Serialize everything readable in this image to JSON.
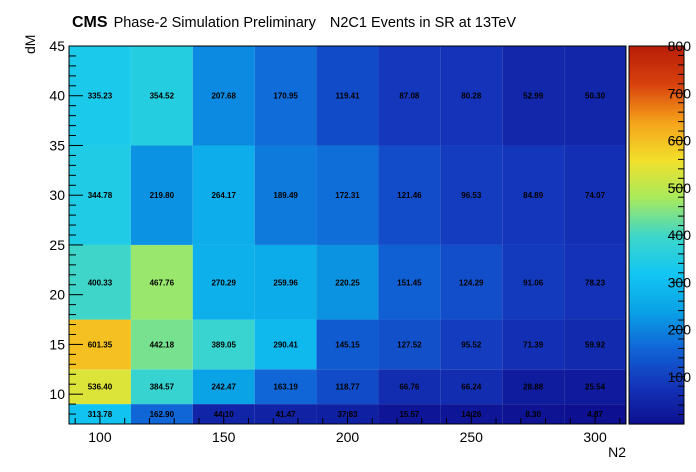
{
  "header": {
    "experiment": "CMS",
    "subtitle": "Phase-2 Simulation Preliminary",
    "description": "N2C1 Events in SR at 13TeV"
  },
  "chart_data": {
    "type": "heatmap",
    "xlabel": "N2",
    "ylabel": "dM",
    "xlim": [
      87.5,
      312.5
    ],
    "ylim": [
      7,
      45
    ],
    "zlim": [
      0,
      800
    ],
    "x_bin_edges": [
      87.5,
      112.5,
      137.5,
      162.5,
      187.5,
      212.5,
      237.5,
      262.5,
      287.5,
      312.5
    ],
    "y_bin_edges": [
      7,
      9,
      12.5,
      17.5,
      25,
      35,
      45
    ],
    "x_ticks": [
      100,
      150,
      200,
      250,
      300
    ],
    "y_ticks": [
      10,
      15,
      20,
      25,
      30,
      35,
      40,
      45
    ],
    "z_ticks": [
      100,
      200,
      300,
      400,
      500,
      600,
      700,
      800
    ],
    "cells": [
      [
        313.78,
        162.9,
        44.1,
        41.47,
        37.83,
        15.57,
        14.26,
        8.3,
        4.87
      ],
      [
        536.4,
        384.57,
        242.47,
        163.19,
        118.77,
        66.76,
        66.24,
        28.88,
        25.54
      ],
      [
        601.35,
        442.18,
        389.05,
        290.41,
        145.15,
        127.52,
        95.52,
        71.39,
        59.92
      ],
      [
        400.33,
        467.76,
        270.29,
        259.96,
        220.25,
        151.45,
        124.29,
        91.06,
        78.23
      ],
      [
        344.78,
        219.8,
        264.17,
        189.49,
        172.31,
        121.46,
        96.53,
        84.89,
        74.07
      ],
      [
        335.23,
        354.52,
        207.68,
        170.95,
        119.41,
        87.08,
        80.28,
        52.99,
        50.3
      ]
    ],
    "cell_labels": [
      [
        "313.78",
        "162.90",
        "44.10",
        "41.47",
        "37.83",
        "15.57",
        "14.26",
        "8.30",
        "4.87"
      ],
      [
        "536.40",
        "384.57",
        "242.47",
        "163.19",
        "118.77",
        "66.76",
        "66.24",
        "28.88",
        "25.54"
      ],
      [
        "601.35",
        "442.18",
        "389.05",
        "290.41",
        "145.15",
        "127.52",
        "95.52",
        "71.39",
        "59.92"
      ],
      [
        "400.33",
        "467.76",
        "270.29",
        "259.96",
        "220.25",
        "151.45",
        "124.29",
        "91.06",
        "78.23"
      ],
      [
        "344.78",
        "219.80",
        "264.17",
        "189.49",
        "172.31",
        "121.46",
        "96.53",
        "84.89",
        "74.07"
      ],
      [
        "335.23",
        "354.52",
        "207.68",
        "170.95",
        "119.41",
        "87.08",
        "80.28",
        "52.99",
        "50.30"
      ]
    ],
    "colormap": [
      "#0d0f8f",
      "#1433b8",
      "#1064d6",
      "#0aa2e6",
      "#12c6f2",
      "#3fd6c9",
      "#a9ea5c",
      "#f2e02a",
      "#f5a21a",
      "#d8420e",
      "#b81e08"
    ],
    "grid": false
  }
}
